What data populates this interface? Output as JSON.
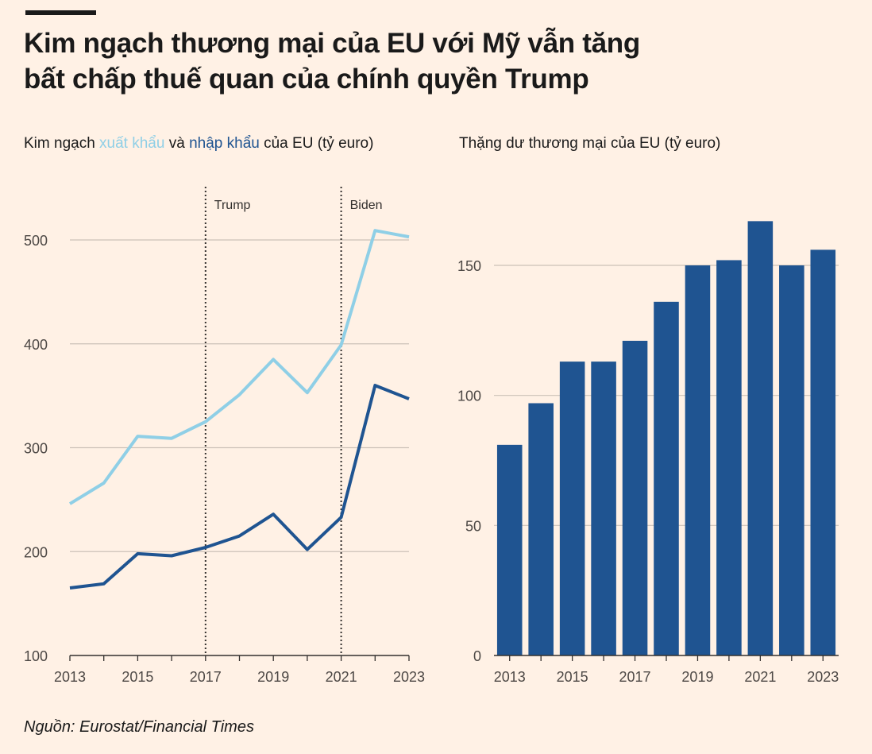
{
  "header": {
    "title_line1": "Kim ngạch thương mại của EU với Mỹ vẫn tăng",
    "title_line2": "bất chấp thuế quan của chính quyền Trump"
  },
  "left_subtitle": {
    "prefix": "Kim ngạch ",
    "export_word": "xuất khẩu",
    "middle": " và ",
    "import_word": "nhập khẩu",
    "suffix": " của EU (tỷ euro)"
  },
  "right_subtitle": "Thặng dư thương mại của EU (tỷ euro)",
  "source": "Nguồn: Eurostat/Financial Times",
  "colors": {
    "background": "#fff1e5",
    "export": "#8fcfe6",
    "import": "#1f5491",
    "bar": "#1f5491",
    "grid": "#ccc1b7"
  },
  "chart_data": [
    {
      "type": "line",
      "title": "Kim ngạch xuất khẩu và nhập khẩu của EU (tỷ euro)",
      "x": [
        2013,
        2014,
        2015,
        2016,
        2017,
        2018,
        2019,
        2020,
        2021,
        2022,
        2023
      ],
      "x_tick_labels": [
        "2013",
        "2015",
        "2017",
        "2019",
        "2021",
        "2023"
      ],
      "y_ticks": [
        100,
        200,
        300,
        400,
        500
      ],
      "ylim": [
        100,
        540
      ],
      "series": [
        {
          "name": "xuất khẩu",
          "values": [
            246,
            266,
            311,
            309,
            325,
            351,
            385,
            353,
            399,
            509,
            503
          ]
        },
        {
          "name": "nhập khẩu",
          "values": [
            165,
            169,
            198,
            196,
            204,
            215,
            236,
            202,
            233,
            360,
            347
          ]
        }
      ],
      "annotations": [
        {
          "x": 2017,
          "label": "Trump"
        },
        {
          "x": 2021,
          "label": "Biden"
        }
      ]
    },
    {
      "type": "bar",
      "title": "Thặng dư thương mại của EU (tỷ euro)",
      "categories": [
        "2013",
        "2014",
        "2015",
        "2016",
        "2017",
        "2018",
        "2019",
        "2020",
        "2021",
        "2022",
        "2023"
      ],
      "values": [
        81,
        97,
        113,
        113,
        121,
        136,
        150,
        152,
        167,
        150,
        156
      ],
      "x_tick_labels": [
        "2013",
        "2015",
        "2017",
        "2019",
        "2021",
        "2023"
      ],
      "y_ticks": [
        0,
        50,
        100,
        150
      ],
      "ylim": [
        0,
        175
      ]
    }
  ]
}
